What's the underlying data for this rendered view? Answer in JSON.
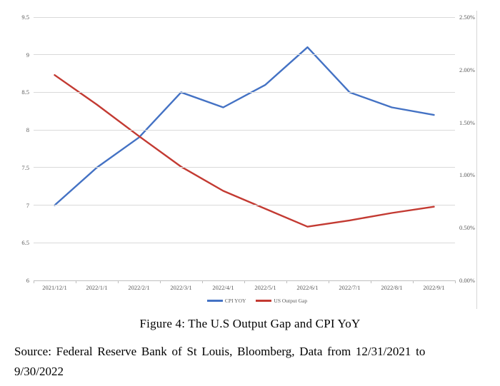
{
  "chart_data": {
    "type": "line",
    "x": [
      "2021/12/1",
      "2022/1/1",
      "2022/2/1",
      "2022/3/1",
      "2022/4/1",
      "2022/5/1",
      "2022/6/1",
      "2022/7/1",
      "2022/8/1",
      "2022/9/1"
    ],
    "series": [
      {
        "name": "CPI YOY",
        "axis": "left",
        "color": "#4472C4",
        "values": [
          7.0,
          7.5,
          7.9,
          8.5,
          8.3,
          8.6,
          9.1,
          8.5,
          8.3,
          8.2
        ]
      },
      {
        "name": "US Output Gap",
        "axis": "right",
        "color": "#C33A32",
        "values": [
          1.95,
          1.67,
          1.37,
          1.08,
          0.85,
          0.68,
          0.51,
          0.57,
          0.64,
          0.7
        ]
      }
    ],
    "left_axis": {
      "min": 6,
      "max": 9.5,
      "ticks": [
        "9.5",
        "9",
        "8.5",
        "8",
        "7.5",
        "7",
        "6.5",
        "6"
      ]
    },
    "right_axis": {
      "min": 0.0,
      "max": 2.5,
      "ticks": [
        "2.50%",
        "2.00%",
        "1.50%",
        "1.00%",
        "0.50%",
        "0.00%"
      ]
    },
    "grid": true,
    "legend_position": "bottom",
    "title": "Figure 4: The U.S Output Gap and CPI YoY"
  },
  "caption": "Figure 4: The U.S Output Gap and CPI YoY",
  "source": {
    "line1": "Source: Federal Reserve Bank of St Louis, Bloomberg, Data from 12/31/2021 to",
    "line2": "9/30/2022"
  },
  "colors": {
    "gridline": "#d9d9d9",
    "axis_line": "#bfbfbf",
    "tick_label": "#595959",
    "cpi_blue": "#4472C4",
    "output_gap_red": "#C33A32"
  }
}
